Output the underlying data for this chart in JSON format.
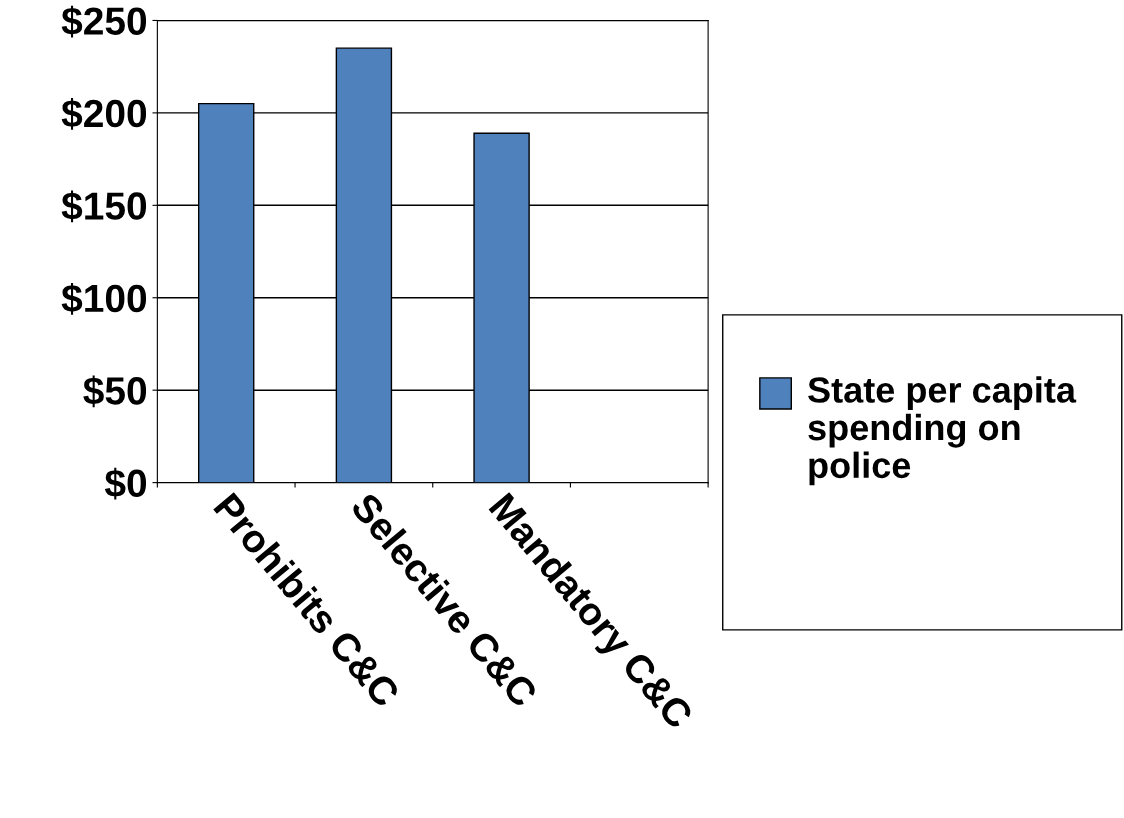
{
  "chart_data": {
    "type": "bar",
    "categories": [
      "Prohibits C&C",
      "Selective C&C",
      "Mandatory C&C"
    ],
    "series": [
      {
        "name": "State per capita spending on police",
        "color": "#4f81bd",
        "values": [
          205,
          235,
          189
        ]
      }
    ],
    "ylim": [
      0,
      250
    ],
    "yticks": [
      {
        "value": 0,
        "label": "$0"
      },
      {
        "value": 50,
        "label": "$50"
      },
      {
        "value": 100,
        "label": "$100"
      },
      {
        "value": 150,
        "label": "$150"
      },
      {
        "value": 200,
        "label": "$200"
      },
      {
        "value": 250,
        "label": "$250"
      }
    ],
    "grid": "y",
    "legend": "right"
  }
}
